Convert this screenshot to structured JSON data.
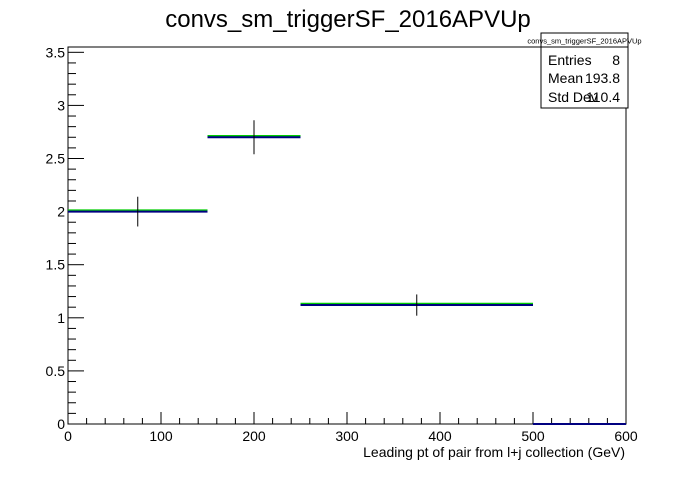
{
  "chart_data": {
    "type": "histogram",
    "title": "convs_sm_triggerSF_2016APVUp",
    "xlabel": "Leading pt of pair from l+j collection (GeV)",
    "ylabel": "",
    "xlim": [
      0,
      600
    ],
    "ylim": [
      0,
      3.55
    ],
    "x_ticks": [
      0,
      100,
      200,
      300,
      400,
      500,
      600
    ],
    "y_ticks": [
      0,
      0.5,
      1,
      1.5,
      2,
      2.5,
      3,
      3.5
    ],
    "x_tick_labels": [
      "0",
      "100",
      "200",
      "300",
      "400",
      "500",
      "600"
    ],
    "y_tick_labels": [
      "0",
      "0.5",
      "1",
      "1.5",
      "2",
      "2.5",
      "3",
      "3.5"
    ],
    "bins": [
      {
        "x_low": 0,
        "x_high": 150,
        "value": 2.0,
        "error": 0.14
      },
      {
        "x_low": 150,
        "x_high": 250,
        "value": 2.7,
        "error": 0.16
      },
      {
        "x_low": 250,
        "x_high": 500,
        "value": 1.12,
        "error": 0.1
      },
      {
        "x_low": 500,
        "x_high": 600,
        "value": 0.0,
        "error": 0.0
      }
    ],
    "line_color": "#000080",
    "band_color": "#00cc00",
    "error_color": "#000000",
    "grid": false,
    "stats_box": {
      "title": "convs_sm_triggerSF_2016APVUp",
      "rows": [
        {
          "label": "Entries",
          "value": "8"
        },
        {
          "label": "Mean",
          "value": "193.8"
        },
        {
          "label": "Std Dev",
          "value": "110.4"
        }
      ]
    }
  }
}
